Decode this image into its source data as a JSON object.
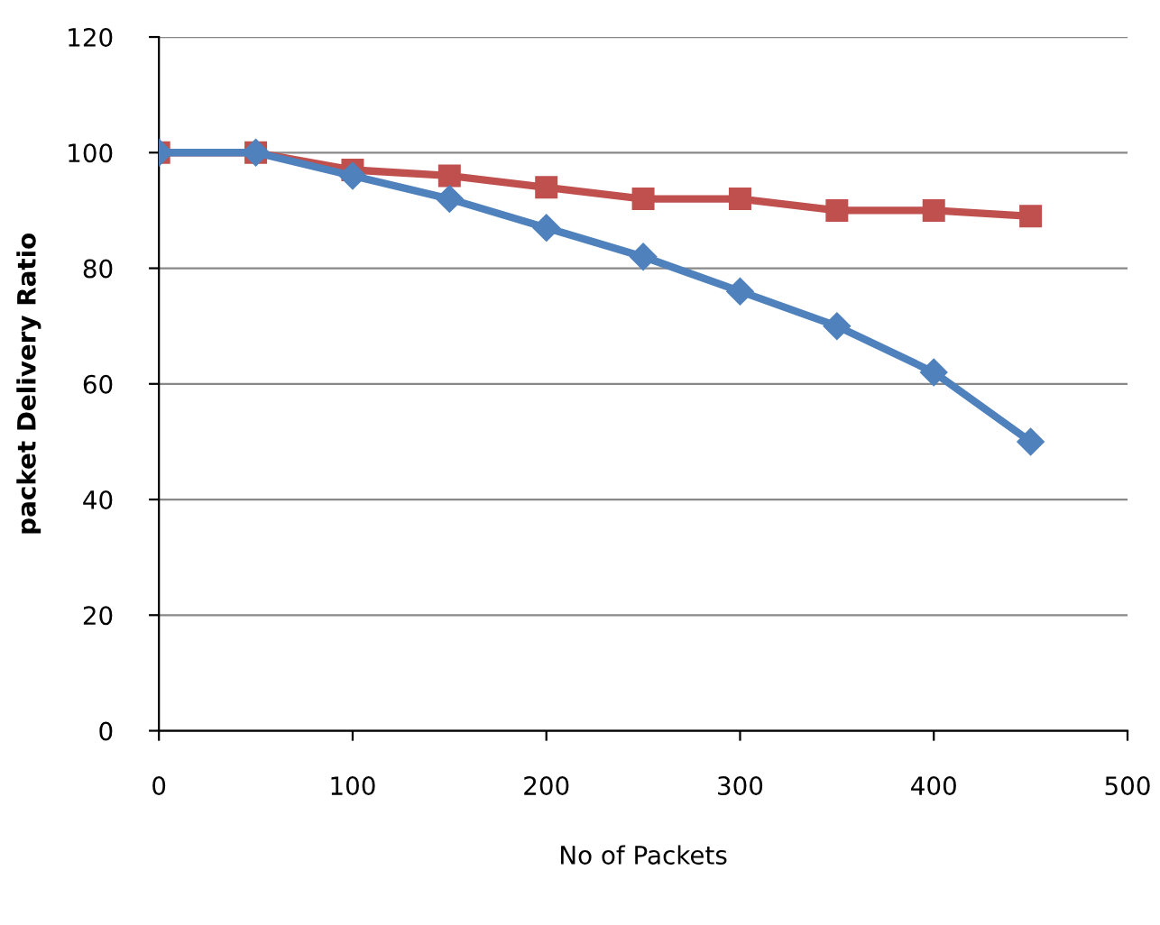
{
  "chart_data": {
    "type": "line",
    "xlabel": "No of Packets",
    "ylabel": "packet Delivery Ratio",
    "x": [
      0,
      50,
      100,
      150,
      200,
      250,
      300,
      350,
      400,
      450
    ],
    "series": [
      {
        "color": "#4f81bd",
        "marker": "diamond",
        "values": [
          100,
          100,
          96,
          92,
          87,
          82,
          76,
          70,
          62,
          50
        ]
      },
      {
        "color": "#c0504d",
        "marker": "square",
        "values": [
          100,
          100,
          97,
          96,
          94,
          92,
          92,
          90,
          90,
          89
        ]
      }
    ],
    "xlim": [
      0,
      500
    ],
    "xticks": [
      0,
      100,
      200,
      300,
      400,
      500
    ],
    "ylim": [
      0,
      120
    ],
    "yticks": [
      0,
      20,
      40,
      60,
      80,
      100,
      120
    ],
    "grid": "y",
    "legend": false,
    "line_style": "solid"
  }
}
